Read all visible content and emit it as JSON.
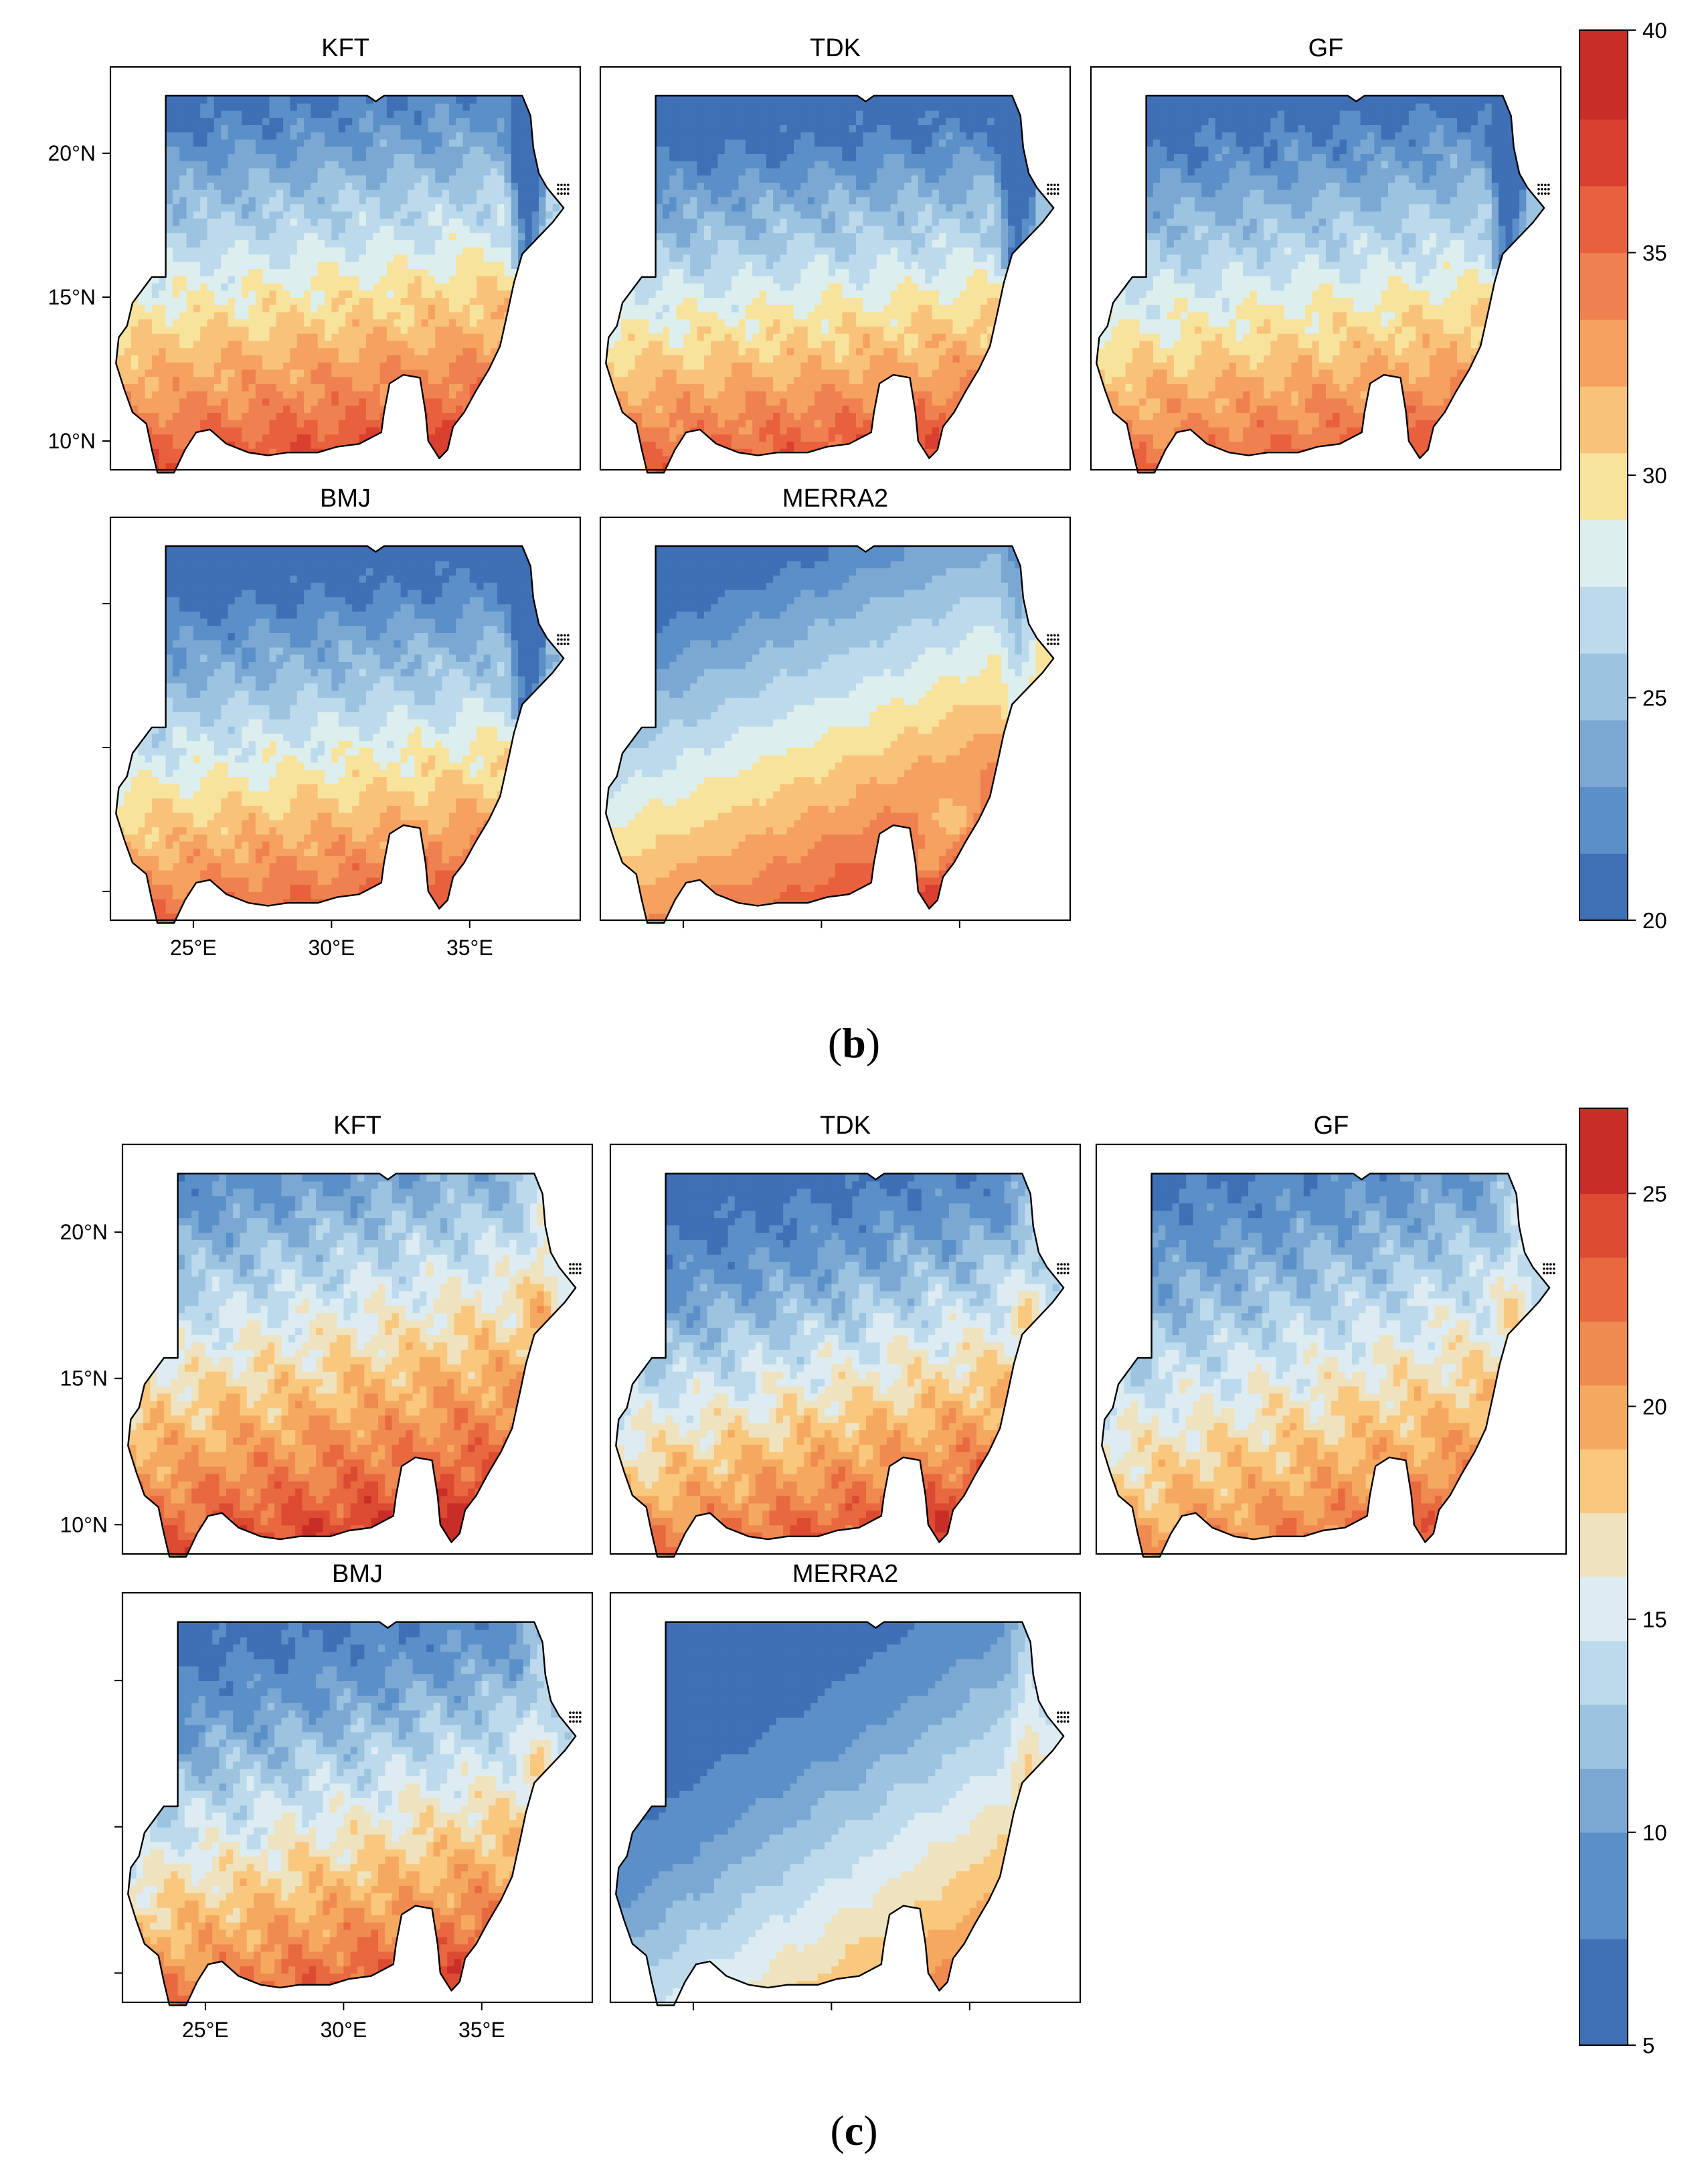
{
  "chart_data": [
    {
      "type": "heatmap",
      "figure_label": {
        "open": "(",
        "letter": "b",
        "close": ")"
      },
      "panels": [
        {
          "title": "KFT",
          "field": {
            "base": 28.5,
            "grad_lat": -1.25,
            "grad_lon": 0.15,
            "coast_cool": 8.5,
            "noise": 1.3,
            "hotspots": []
          }
        },
        {
          "title": "TDK",
          "field": {
            "base": 27.3,
            "grad_lat": -1.35,
            "grad_lon": 0.15,
            "coast_cool": 8.0,
            "noise": 1.3,
            "hotspots": []
          }
        },
        {
          "title": "GF",
          "field": {
            "base": 27.4,
            "grad_lat": -1.25,
            "grad_lon": 0.15,
            "coast_cool": 8.0,
            "noise": 1.3,
            "hotspots": []
          }
        },
        {
          "title": "BMJ",
          "field": {
            "base": 27.0,
            "grad_lat": -1.3,
            "grad_lon": 0.15,
            "coast_cool": 8.0,
            "noise": 1.3,
            "hotspots": []
          }
        },
        {
          "title": "MERRA2",
          "field": {
            "base": 28.3,
            "grad_lat": -1.2,
            "grad_lon": 0.5,
            "coast_cool": 3.0,
            "noise": 0.35,
            "hotspots": [
              {
                "lon": 34.8,
                "lat": 12.5,
                "amp": -4.0,
                "r": 0.9
              },
              {
                "lon": 33.9,
                "lat": 11.0,
                "amp": -3.5,
                "r": 0.8
              }
            ]
          }
        }
      ],
      "x_ticks": [
        {
          "value": 25,
          "label": "25°E"
        },
        {
          "value": 30,
          "label": "30°E"
        },
        {
          "value": 35,
          "label": "35°E"
        }
      ],
      "y_ticks": [
        {
          "value": 20,
          "label": "20°N"
        },
        {
          "value": 15,
          "label": "15°N"
        },
        {
          "value": 10,
          "label": "10°N"
        }
      ],
      "xlim": [
        22,
        39
      ],
      "ylim": [
        9,
        23
      ],
      "colorbar": {
        "range": [
          20,
          40
        ],
        "ticks": [
          {
            "value": 20,
            "label": "20"
          },
          {
            "value": 25,
            "label": "25"
          },
          {
            "value": 30,
            "label": "30"
          },
          {
            "value": 35,
            "label": "35"
          },
          {
            "value": 40,
            "label": "40"
          }
        ],
        "levels": [
          20,
          21.5,
          23,
          24.5,
          26,
          27.5,
          29,
          30.5,
          32,
          33.5,
          35,
          36.5,
          38,
          40
        ],
        "colors": [
          "#3f6fb5",
          "#5b8fc7",
          "#7ba8d3",
          "#9cc3e0",
          "#bcdaec",
          "#ddeeee",
          "#f8e39c",
          "#f9c27a",
          "#f5a160",
          "#ef8150",
          "#e8603e",
          "#d9402f",
          "#c82d27"
        ]
      }
    },
    {
      "type": "heatmap",
      "figure_label": {
        "open": "(",
        "letter": "c",
        "close": ")"
      },
      "panels": [
        {
          "title": "KFT",
          "field": {
            "base": 17.0,
            "grad_lat": -1.2,
            "grad_lon": 0.25,
            "coast_cool": -2.0,
            "noise": 1.8,
            "hotspots": []
          }
        },
        {
          "title": "TDK",
          "field": {
            "base": 14.5,
            "grad_lat": -1.4,
            "grad_lon": 0.35,
            "coast_cool": -2.0,
            "noise": 1.8,
            "hotspots": []
          }
        },
        {
          "title": "GF",
          "field": {
            "base": 14.8,
            "grad_lat": -1.1,
            "grad_lon": 0.3,
            "coast_cool": -2.0,
            "noise": 1.8,
            "hotspots": []
          }
        },
        {
          "title": "BMJ",
          "field": {
            "base": 14.8,
            "grad_lat": -1.3,
            "grad_lon": 0.3,
            "coast_cool": -2.0,
            "noise": 1.8,
            "hotspots": []
          }
        },
        {
          "title": "MERRA2",
          "field": {
            "base": 11.5,
            "grad_lat": -1.05,
            "grad_lon": 0.7,
            "coast_cool": -2.5,
            "noise": 0.3,
            "hotspots": []
          }
        }
      ],
      "x_ticks": [
        {
          "value": 25,
          "label": "25°E"
        },
        {
          "value": 30,
          "label": "30°E"
        },
        {
          "value": 35,
          "label": "35°E"
        }
      ],
      "y_ticks": [
        {
          "value": 20,
          "label": "20°N"
        },
        {
          "value": 15,
          "label": "15°N"
        },
        {
          "value": 10,
          "label": "10°N"
        }
      ],
      "xlim": [
        22,
        39
      ],
      "ylim": [
        9,
        23
      ],
      "colorbar": {
        "range": [
          5,
          27
        ],
        "ticks": [
          {
            "value": 5,
            "label": "5"
          },
          {
            "value": 10,
            "label": "10"
          },
          {
            "value": 15,
            "label": "15"
          },
          {
            "value": 20,
            "label": "20"
          },
          {
            "value": 25,
            "label": "25"
          }
        ],
        "levels": [
          5,
          7.5,
          10,
          11.5,
          13,
          14.5,
          16,
          17.5,
          19,
          20.5,
          22,
          23.5,
          25,
          27
        ],
        "colors": [
          "#3f6fb5",
          "#5b8fc7",
          "#7ba8d3",
          "#9cc3e0",
          "#bcdaec",
          "#dcecf2",
          "#efe2be",
          "#f9c77e",
          "#f5a960",
          "#ef8a50",
          "#e8683f",
          "#dc4a31",
          "#c82d27"
        ]
      }
    }
  ]
}
